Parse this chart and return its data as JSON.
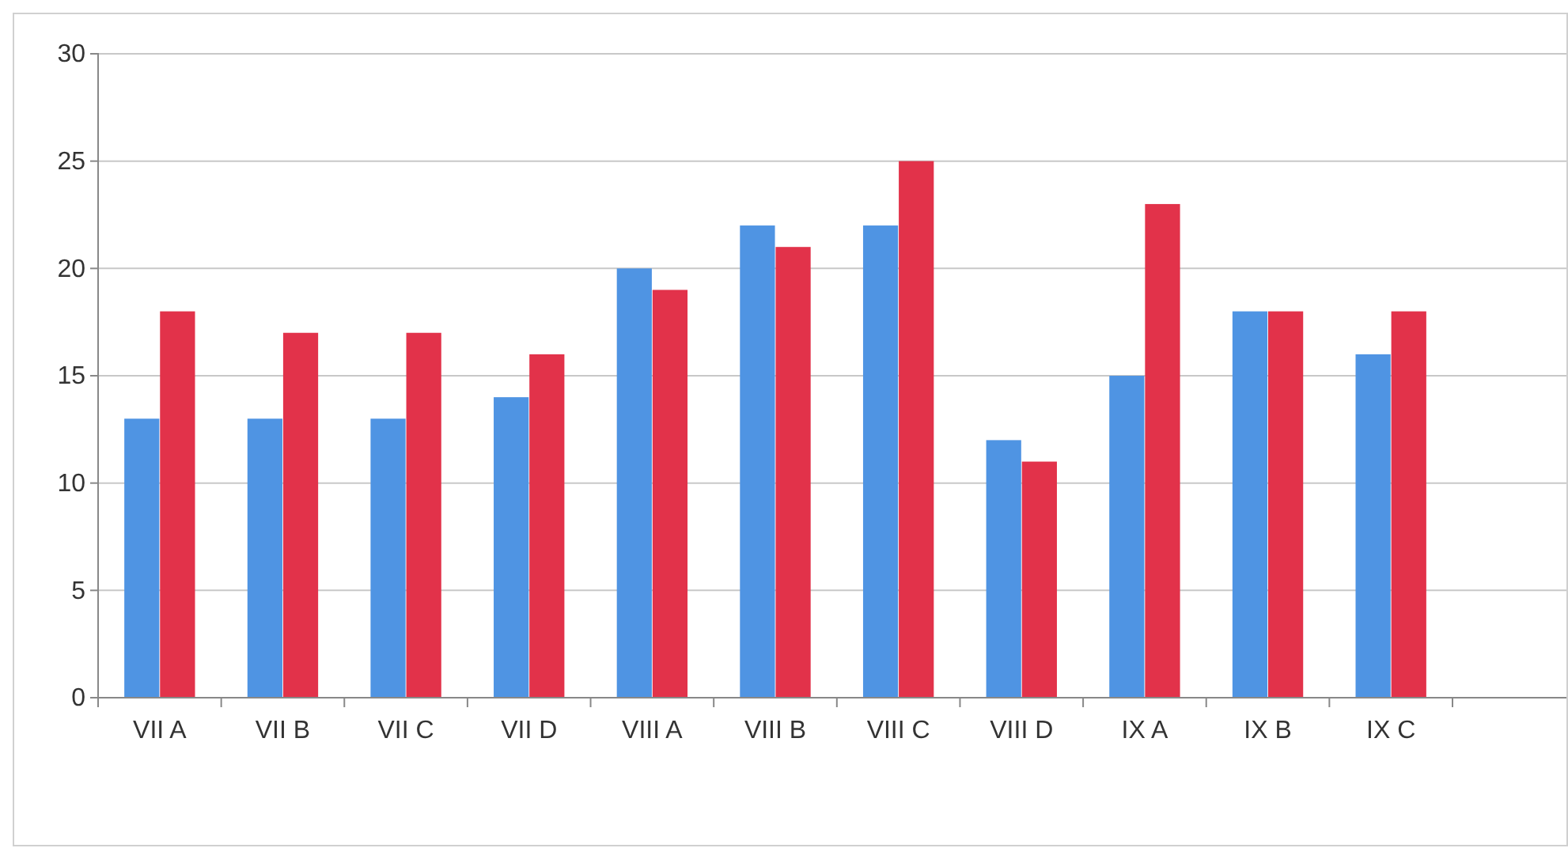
{
  "chart_data": {
    "type": "bar",
    "categories": [
      "VII A",
      "VII B",
      "VII C",
      "VII D",
      "VIII A",
      "VIII B",
      "VIII C",
      "VIII D",
      "IX A",
      "IX B",
      "IX C"
    ],
    "series": [
      {
        "color": "#4f94e3",
        "values": [
          13,
          13,
          13,
          14,
          20,
          22,
          22,
          12,
          15,
          18,
          16
        ]
      },
      {
        "color": "#e2324a",
        "values": [
          18,
          17,
          17,
          16,
          19,
          21,
          25,
          11,
          23,
          18,
          18
        ]
      }
    ],
    "ylim": [
      0,
      30
    ],
    "yticks": [
      0,
      5,
      10,
      15,
      20,
      25,
      30
    ],
    "grid": "y"
  }
}
